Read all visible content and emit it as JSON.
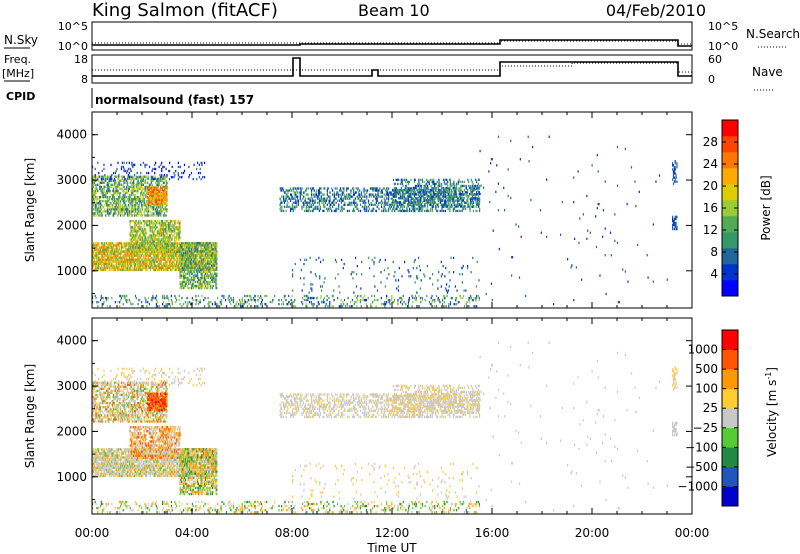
{
  "header": {
    "station": "King Salmon (fitACF)",
    "beam": "Beam 10",
    "date": "04/Feb/2010"
  },
  "status_panels": {
    "left_labels": {
      "nsky": "N.Sky",
      "freq": "Freq.",
      "freq_unit": "[MHz]",
      "cpid": "CPID"
    },
    "right_labels": {
      "nsearch": "N.Search",
      "nave": "Nave"
    },
    "noise_ticks_left": [
      "10^5",
      "10^0"
    ],
    "noise_ticks_right": [
      "10^5",
      "10^0"
    ],
    "freq_ticks": [
      "18",
      "8"
    ],
    "nave_ticks": [
      "60",
      "0"
    ],
    "cpid_text": "normalsound (fast) 157"
  },
  "chart_data": [
    {
      "type": "heatmap",
      "panel": "power",
      "ylabel": "Slant Range [km]",
      "yticks": [
        1000,
        2000,
        3000,
        4000
      ],
      "ylim": [
        180,
        4500
      ],
      "xlim": [
        0,
        24
      ],
      "colorbar_label": "Power [dB]",
      "colorbar_ticks": [
        "28",
        "24",
        "20",
        "16",
        "12",
        "8",
        "4"
      ],
      "colorbar_colors": [
        "#0000ff",
        "#0033cc",
        "#226699",
        "#339966",
        "#55aa55",
        "#99cc33",
        "#ddcc00",
        "#ffaa00",
        "#ff7700",
        "#ff4400",
        "#ff0000"
      ]
    },
    {
      "type": "heatmap",
      "panel": "velocity",
      "ylabel": "Slant Range [km]",
      "yticks": [
        1000,
        2000,
        3000,
        4000
      ],
      "ylim": [
        180,
        4500
      ],
      "xlim": [
        0,
        24
      ],
      "colorbar_label": "Velocity [m s",
      "colorbar_label_sup": "-1",
      "colorbar_label_end": "]",
      "colorbar_ticks": [
        "1000",
        "500",
        "100",
        "25",
        "−25",
        "−100",
        "−500",
        "−1000"
      ],
      "colorbar_colors": [
        "#0000cc",
        "#2255bb",
        "#228844",
        "#55cc33",
        "#c8c8c8",
        "#ffcc33",
        "#ff9900",
        "#ff5500",
        "#ff0000"
      ]
    }
  ],
  "xaxis": {
    "ticks": [
      "00:00",
      "04:00",
      "08:00",
      "12:00",
      "16:00",
      "20:00",
      "00:00"
    ],
    "label": "Time UT"
  }
}
